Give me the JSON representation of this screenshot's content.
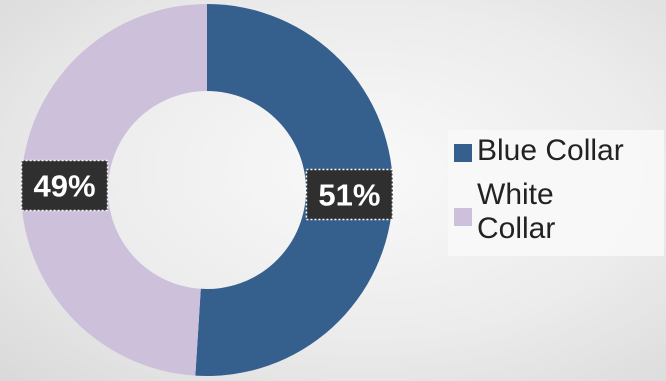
{
  "chart_data": {
    "type": "pie",
    "variant": "donut",
    "categories": [
      "Blue Collar",
      "White Collar"
    ],
    "values": [
      51,
      49
    ],
    "data_labels": [
      "51%",
      "49%"
    ],
    "colors": [
      "#355f8d",
      "#ccc0da"
    ],
    "legend": {
      "placement": "right",
      "entries": [
        "Blue Collar",
        "White Collar"
      ]
    }
  }
}
